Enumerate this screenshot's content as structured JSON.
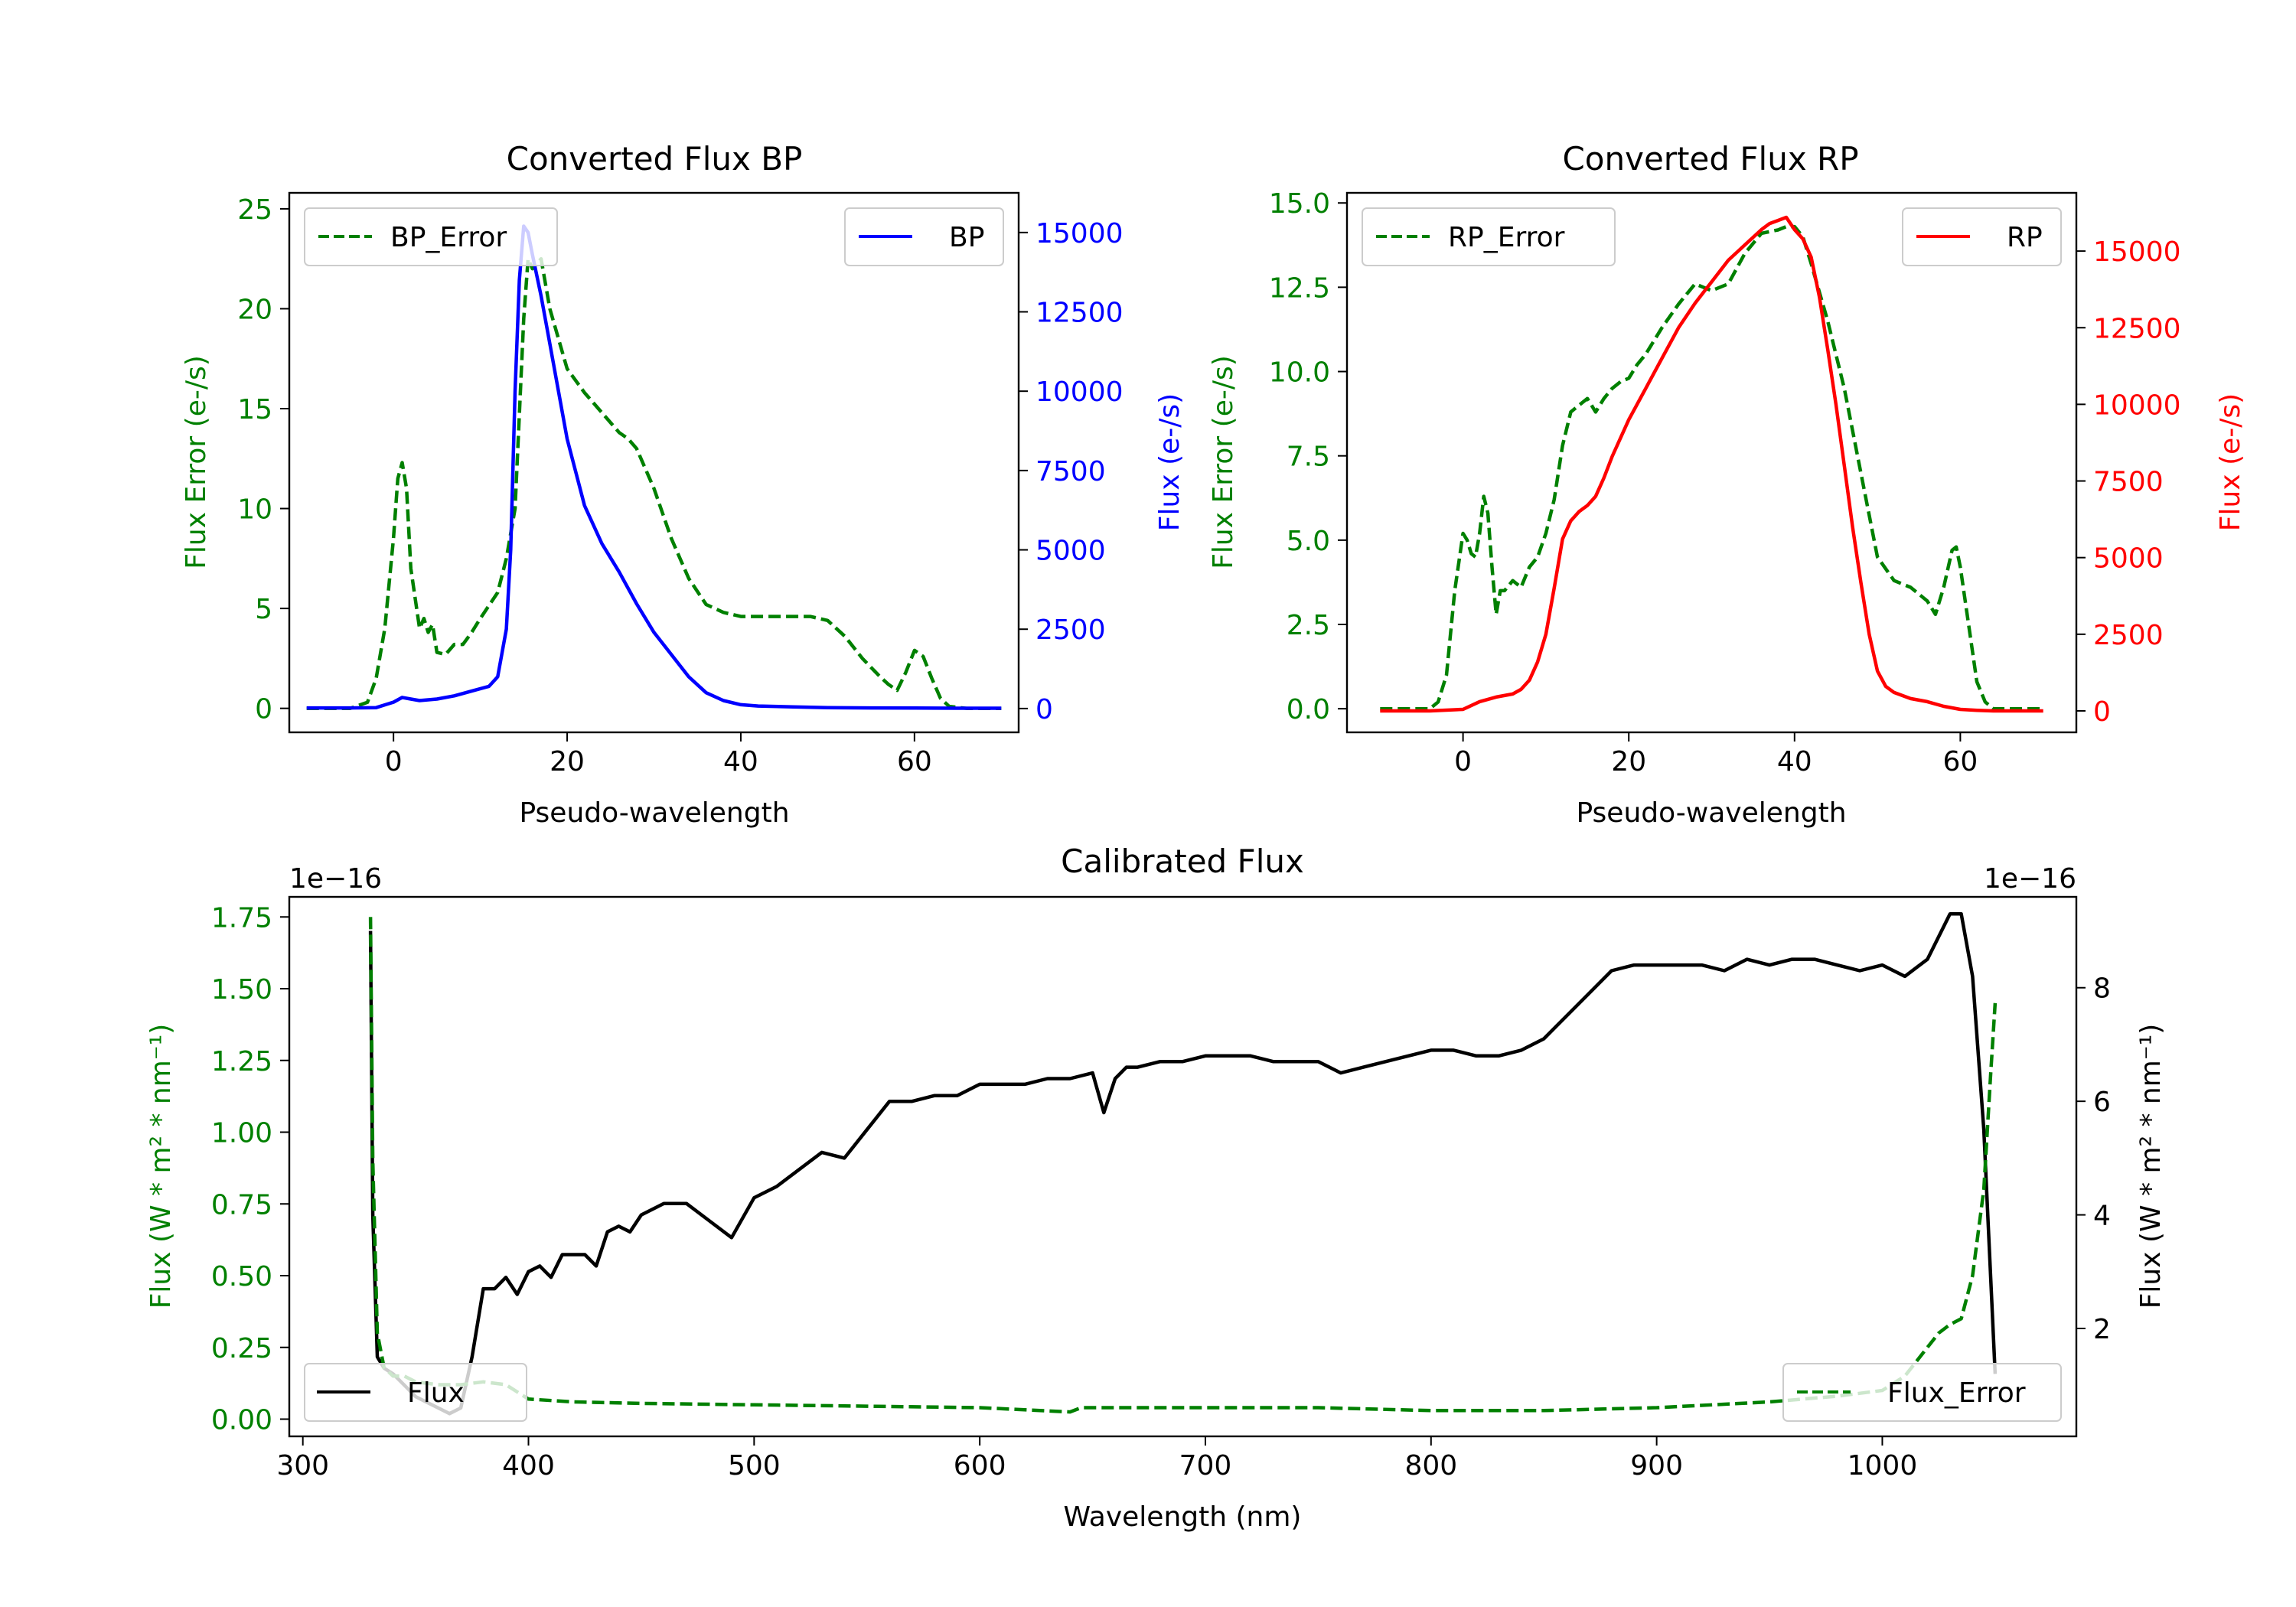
{
  "colors": {
    "bp": "#0000ff",
    "rp": "#ff0000",
    "error": "#008000",
    "flux": "#000000"
  },
  "chart_data": [
    {
      "id": "bp",
      "type": "line",
      "title": "Converted Flux BP",
      "xlabel": "Pseudo-wavelength",
      "ylabel_left": "Flux Error (e-/s)",
      "ylabel_right": "Flux (e-/s)",
      "xlim": [
        -12,
        72
      ],
      "ylim_left": [
        -1.2,
        25.8
      ],
      "ylim_right": [
        -750,
        16250
      ],
      "xticks": [
        0,
        20,
        40,
        60
      ],
      "xtick_labels": [
        "0",
        "20",
        "40",
        "60"
      ],
      "yticks_left": [
        0,
        5,
        10,
        15,
        20,
        25
      ],
      "ytick_labels_left": [
        "0",
        "5",
        "10",
        "15",
        "20",
        "25"
      ],
      "yticks_right": [
        0,
        2500,
        5000,
        7500,
        10000,
        12500,
        15000
      ],
      "ytick_labels_right": [
        "0",
        "2500",
        "5000",
        "7500",
        "10000",
        "12500",
        "15000"
      ],
      "legend_left": "BP_Error",
      "legend_right": "BP",
      "legend_left_loc": "upper-left",
      "legend_right_loc": "upper-right",
      "series": [
        {
          "name": "BP_Error",
          "axis": "left",
          "style": "dashed",
          "color": "#008000",
          "x": [
            -10,
            -5,
            -3,
            -2,
            -1,
            0,
            0.5,
            1,
            1.5,
            2,
            3,
            3.5,
            4,
            4.5,
            5,
            6,
            7,
            8,
            9,
            10,
            12,
            13,
            14,
            15,
            15.5,
            16,
            17,
            18,
            19,
            20,
            22,
            24,
            26,
            27,
            28,
            30,
            32,
            34,
            36,
            38,
            40,
            42,
            46,
            48,
            50,
            52,
            54,
            56,
            57,
            58,
            59,
            60,
            61,
            62,
            63,
            64,
            66,
            70
          ],
          "y": [
            0,
            0,
            0.3,
            1.5,
            4,
            8.5,
            11.5,
            12.3,
            11,
            7,
            4,
            4.5,
            3.8,
            4.2,
            2.8,
            2.7,
            3.2,
            3.2,
            3.8,
            4.5,
            5.8,
            7.5,
            10,
            19.5,
            22.5,
            22,
            22.5,
            20,
            18.5,
            17,
            15.8,
            14.8,
            13.8,
            13.5,
            13,
            11,
            8.5,
            6.5,
            5.2,
            4.8,
            4.6,
            4.6,
            4.6,
            4.6,
            4.4,
            3.6,
            2.5,
            1.6,
            1.2,
            0.9,
            1.8,
            2.9,
            2.6,
            1.5,
            0.5,
            0.1,
            0,
            0
          ]
        },
        {
          "name": "BP",
          "axis": "right",
          "style": "solid",
          "color": "#0000ff",
          "x": [
            -10,
            -5,
            -2,
            0,
            1,
            2,
            3,
            5,
            7,
            9,
            11,
            12,
            13,
            13.5,
            14,
            14.5,
            15,
            15.5,
            16,
            17,
            18,
            19,
            20,
            22,
            24,
            26,
            28,
            30,
            32,
            34,
            36,
            38,
            40,
            42,
            46,
            50,
            55,
            60,
            65,
            70
          ],
          "y": [
            20,
            20,
            30,
            200,
            350,
            300,
            250,
            300,
            400,
            550,
            700,
            1000,
            2500,
            5000,
            10000,
            13500,
            15200,
            15000,
            14300,
            13000,
            11500,
            10000,
            8500,
            6400,
            5200,
            4300,
            3300,
            2400,
            1700,
            1000,
            500,
            250,
            120,
            80,
            50,
            30,
            20,
            15,
            10,
            10
          ]
        }
      ]
    },
    {
      "id": "rp",
      "type": "line",
      "title": "Converted Flux RP",
      "xlabel": "Pseudo-wavelength",
      "ylabel_left": "Flux Error (e-/s)",
      "ylabel_right": "Flux (e-/s)",
      "xlim": [
        -14,
        74
      ],
      "ylim_left": [
        -0.7,
        15.3
      ],
      "ylim_right": [
        -700,
        16900
      ],
      "xticks": [
        0,
        20,
        40,
        60
      ],
      "xtick_labels": [
        "0",
        "20",
        "40",
        "60"
      ],
      "yticks_left": [
        0,
        2.5,
        5,
        7.5,
        10,
        12.5,
        15
      ],
      "ytick_labels_left": [
        "0.0",
        "2.5",
        "5.0",
        "7.5",
        "10.0",
        "12.5",
        "15.0"
      ],
      "yticks_right": [
        0,
        2500,
        5000,
        7500,
        10000,
        12500,
        15000
      ],
      "ytick_labels_right": [
        "0",
        "2500",
        "5000",
        "7500",
        "10000",
        "12500",
        "15000"
      ],
      "legend_left": "RP_Error",
      "legend_right": "RP",
      "legend_left_loc": "upper-left",
      "legend_right_loc": "upper-right",
      "series": [
        {
          "name": "RP_Error",
          "axis": "left",
          "style": "dashed",
          "color": "#008000",
          "x": [
            -10,
            -4,
            -3,
            -2,
            -1,
            0,
            0.5,
            1,
            1.5,
            2,
            2.5,
            3,
            3.5,
            4,
            4.5,
            5,
            6,
            7,
            8,
            9,
            10,
            11,
            12,
            13,
            14,
            15,
            16,
            17,
            18,
            19,
            20,
            21,
            22,
            24,
            26,
            28,
            29,
            30,
            32,
            34,
            36,
            38,
            39,
            40,
            41,
            42,
            44,
            46,
            48,
            50,
            52,
            54,
            56,
            57,
            58,
            59,
            59.5,
            60,
            61,
            62,
            63,
            64,
            66,
            70
          ],
          "y": [
            0,
            0,
            0.2,
            1,
            3.5,
            5.2,
            5.0,
            4.6,
            4.5,
            5.2,
            6.3,
            5.8,
            4.2,
            2.8,
            3.5,
            3.5,
            3.8,
            3.6,
            4.2,
            4.5,
            5.2,
            6.2,
            7.8,
            8.8,
            9.0,
            9.2,
            8.8,
            9.2,
            9.5,
            9.7,
            9.8,
            10.2,
            10.5,
            11.3,
            12.0,
            12.6,
            12.5,
            12.4,
            12.6,
            13.5,
            14.1,
            14.2,
            14.3,
            14.3,
            14.0,
            13.2,
            11.5,
            9.5,
            7.0,
            4.5,
            3.8,
            3.6,
            3.2,
            2.8,
            3.6,
            4.7,
            4.8,
            4.2,
            2.5,
            0.8,
            0.2,
            0,
            0,
            0
          ]
        },
        {
          "name": "RP",
          "axis": "right",
          "style": "solid",
          "color": "#ff0000",
          "x": [
            -10,
            -4,
            0,
            2,
            4,
            6,
            7,
            8,
            9,
            10,
            11,
            12,
            13,
            14,
            15,
            16,
            17,
            18,
            20,
            22,
            24,
            26,
            28,
            30,
            32,
            34,
            36,
            37,
            38,
            39,
            40,
            41,
            42,
            43,
            44,
            45,
            46,
            47,
            48,
            49,
            50,
            51,
            52,
            54,
            56,
            58,
            60,
            62,
            64,
            70
          ],
          "y": [
            0,
            0,
            50,
            300,
            450,
            550,
            700,
            1000,
            1600,
            2500,
            4000,
            5600,
            6200,
            6500,
            6700,
            7000,
            7600,
            8300,
            9500,
            10500,
            11500,
            12500,
            13300,
            14000,
            14700,
            15200,
            15700,
            15900,
            16000,
            16100,
            15700,
            15400,
            14800,
            13500,
            11800,
            10000,
            8000,
            6000,
            4200,
            2500,
            1300,
            800,
            600,
            400,
            300,
            150,
            50,
            20,
            0,
            0
          ]
        }
      ]
    },
    {
      "id": "cal",
      "type": "line",
      "title": "Calibrated Flux",
      "xlabel": "Wavelength (nm)",
      "ylabel_left": "Flux (W * m² * nm⁻¹)",
      "ylabel_right": "Flux (W * m² * nm⁻¹)",
      "offset_left": "1e−16",
      "offset_right": "1e−16",
      "xlim": [
        294,
        1086
      ],
      "ylim_left": [
        -0.06,
        1.82
      ],
      "ylim_right": [
        0.1,
        9.6
      ],
      "xticks": [
        300,
        400,
        500,
        600,
        700,
        800,
        900,
        1000
      ],
      "xtick_labels": [
        "300",
        "400",
        "500",
        "600",
        "700",
        "800",
        "900",
        "1000"
      ],
      "yticks_left": [
        0,
        0.25,
        0.5,
        0.75,
        1.0,
        1.25,
        1.5,
        1.75
      ],
      "ytick_labels_left": [
        "0.00",
        "0.25",
        "0.50",
        "0.75",
        "1.00",
        "1.25",
        "1.50",
        "1.75"
      ],
      "yticks_right": [
        2,
        4,
        6,
        8
      ],
      "ytick_labels_right": [
        "2",
        "4",
        "6",
        "8"
      ],
      "legend_left": "Flux",
      "legend_right": "Flux_Error",
      "legend_left_loc": "lower-left",
      "legend_right_loc": "lower-right",
      "series": [
        {
          "name": "Flux",
          "axis": "right",
          "style": "solid",
          "color": "#000000",
          "x": [
            330,
            331,
            333,
            336,
            340,
            345,
            350,
            355,
            360,
            365,
            370,
            375,
            380,
            385,
            390,
            395,
            400,
            405,
            410,
            415,
            420,
            425,
            430,
            435,
            440,
            445,
            450,
            460,
            470,
            480,
            490,
            500,
            510,
            520,
            530,
            540,
            550,
            560,
            570,
            580,
            590,
            600,
            610,
            620,
            630,
            640,
            650,
            655,
            660,
            665,
            670,
            680,
            690,
            700,
            710,
            720,
            730,
            740,
            750,
            760,
            770,
            780,
            790,
            800,
            810,
            820,
            830,
            840,
            850,
            860,
            870,
            880,
            890,
            900,
            910,
            920,
            930,
            940,
            950,
            960,
            970,
            980,
            990,
            1000,
            1010,
            1020,
            1025,
            1030,
            1035,
            1040,
            1045,
            1050
          ],
          "y": [
            9.0,
            4.0,
            1.5,
            1.3,
            1.2,
            1.0,
            0.8,
            0.7,
            0.6,
            0.5,
            0.6,
            1.5,
            2.7,
            2.7,
            2.9,
            2.6,
            3.0,
            3.1,
            2.9,
            3.3,
            3.3,
            3.3,
            3.1,
            3.7,
            3.8,
            3.7,
            4.0,
            4.2,
            4.2,
            3.9,
            3.6,
            4.3,
            4.5,
            4.8,
            5.1,
            5.0,
            5.5,
            6.0,
            6.0,
            6.1,
            6.1,
            6.3,
            6.3,
            6.3,
            6.4,
            6.4,
            6.5,
            5.8,
            6.4,
            6.6,
            6.6,
            6.7,
            6.7,
            6.8,
            6.8,
            6.8,
            6.7,
            6.7,
            6.7,
            6.5,
            6.6,
            6.7,
            6.8,
            6.9,
            6.9,
            6.8,
            6.8,
            6.9,
            7.1,
            7.5,
            7.9,
            8.3,
            8.4,
            8.4,
            8.4,
            8.4,
            8.3,
            8.5,
            8.4,
            8.5,
            8.5,
            8.4,
            8.3,
            8.4,
            8.2,
            8.5,
            8.9,
            9.3,
            9.3,
            8.2,
            5.5,
            1.2
          ]
        },
        {
          "name": "Flux_Error",
          "axis": "left",
          "style": "dashed",
          "color": "#008000",
          "x": [
            330,
            331,
            333,
            336,
            340,
            345,
            350,
            360,
            370,
            380,
            390,
            400,
            420,
            450,
            500,
            550,
            600,
            640,
            645,
            700,
            750,
            800,
            850,
            900,
            950,
            980,
            1000,
            1010,
            1015,
            1020,
            1025,
            1030,
            1035,
            1040,
            1045,
            1048,
            1050
          ],
          "y": [
            1.75,
            0.9,
            0.3,
            0.18,
            0.15,
            0.15,
            0.13,
            0.12,
            0.12,
            0.13,
            0.12,
            0.07,
            0.06,
            0.055,
            0.05,
            0.045,
            0.04,
            0.025,
            0.04,
            0.04,
            0.04,
            0.03,
            0.03,
            0.04,
            0.06,
            0.08,
            0.1,
            0.15,
            0.2,
            0.25,
            0.3,
            0.33,
            0.35,
            0.5,
            0.8,
            1.2,
            1.45
          ]
        }
      ]
    }
  ]
}
